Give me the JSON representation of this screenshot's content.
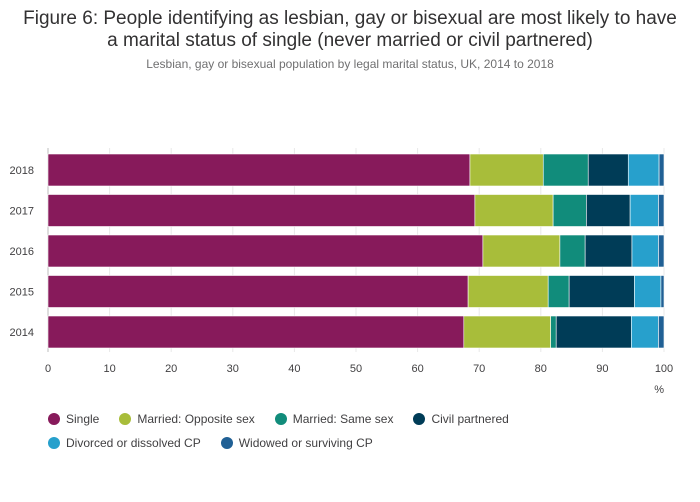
{
  "title": "Figure 6: People identifying as lesbian, gay or bisexual are most likely to have a marital status of single (never married or civil partnered)",
  "subtitle": "Lesbian, gay or bisexual population by legal marital status, UK, 2014 to 2018",
  "chart_data": {
    "type": "bar",
    "orientation": "horizontal",
    "stacked": true,
    "categories": [
      "2018",
      "2017",
      "2016",
      "2015",
      "2014"
    ],
    "series": [
      {
        "name": "Single",
        "color": "#871A5B",
        "values": [
          68.5,
          69.3,
          70.6,
          68.2,
          67.5
        ]
      },
      {
        "name": "Married: Opposite sex",
        "color": "#A8BD3A",
        "values": [
          11.9,
          12.7,
          12.5,
          13.0,
          14.1
        ]
      },
      {
        "name": "Married: Same sex",
        "color": "#118C7B",
        "values": [
          7.3,
          5.4,
          4.1,
          3.4,
          0.9
        ]
      },
      {
        "name": "Civil partnered",
        "color": "#003C57",
        "values": [
          6.5,
          7.1,
          7.6,
          10.6,
          12.2
        ]
      },
      {
        "name": "Divorced or dissolved CP",
        "color": "#27A0CC",
        "values": [
          5.0,
          4.6,
          4.3,
          4.3,
          4.4
        ]
      },
      {
        "name": "Widowed or surviving CP",
        "color": "#206095",
        "values": [
          0.8,
          0.9,
          0.9,
          0.5,
          0.9
        ]
      }
    ],
    "xlim": [
      0,
      100
    ],
    "xticks": [
      0,
      10,
      20,
      30,
      40,
      50,
      60,
      70,
      80,
      90,
      100
    ],
    "xlabel": "%",
    "ylabel": "",
    "legend_position": "bottom"
  }
}
